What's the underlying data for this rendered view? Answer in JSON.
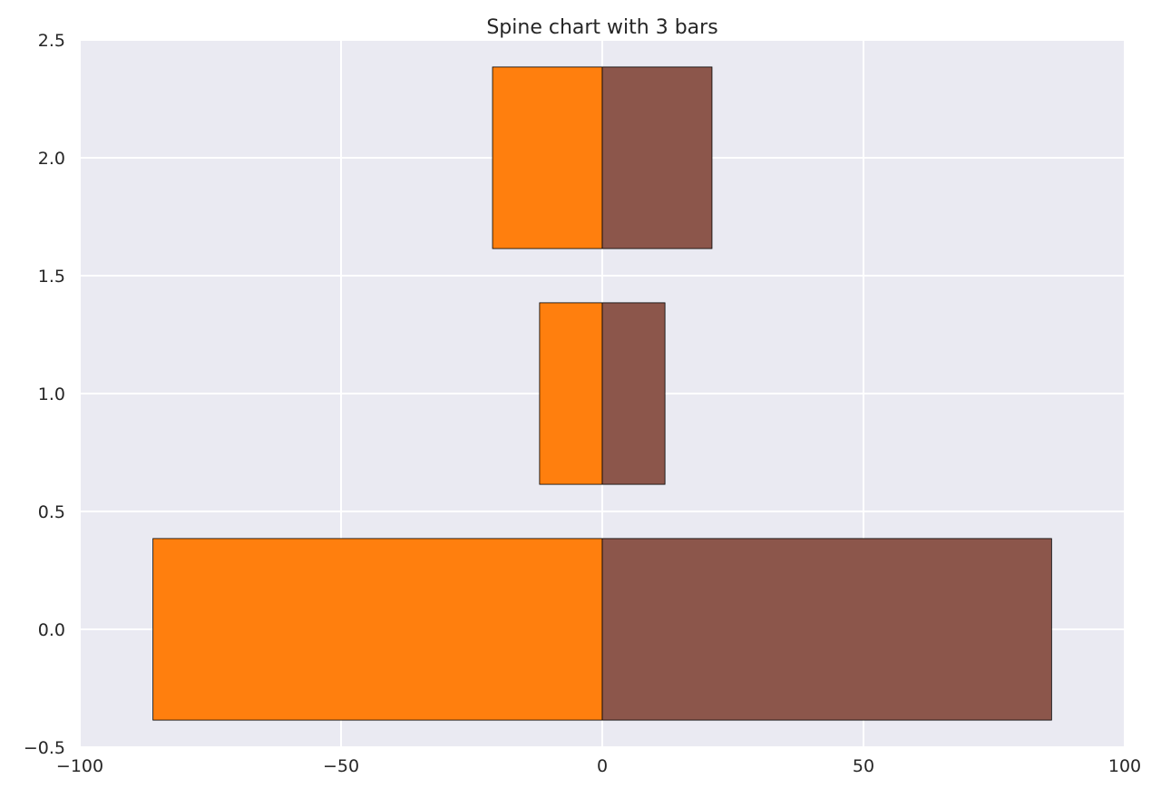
{
  "chart_data": {
    "type": "bar",
    "orientation": "horizontal",
    "title": "Spine chart with 3 bars",
    "xlabel": "",
    "ylabel": "",
    "xlim": [
      -100,
      100
    ],
    "ylim": [
      -0.5,
      2.5
    ],
    "xticks": [
      -100,
      -50,
      0,
      50,
      100
    ],
    "xtick_labels": [
      "−100",
      "−50",
      "0",
      "50",
      "100"
    ],
    "yticks": [
      -0.5,
      0.0,
      0.5,
      1.0,
      1.5,
      2.0,
      2.5
    ],
    "ytick_labels": [
      "−0.5",
      "0.0",
      "0.5",
      "1.0",
      "1.5",
      "2.0",
      "2.5"
    ],
    "grid": true,
    "bar_height": 0.77,
    "categories": [
      0,
      1,
      2
    ],
    "series": [
      {
        "values": [
          -86,
          -12,
          -21
        ],
        "color": "#ff7f0e"
      },
      {
        "values": [
          86,
          12,
          21
        ],
        "color": "#8c564b"
      }
    ]
  },
  "colors": {
    "plot_background": "#eaeaf2",
    "grid": "#ffffff",
    "bar_edge": "#000000"
  }
}
